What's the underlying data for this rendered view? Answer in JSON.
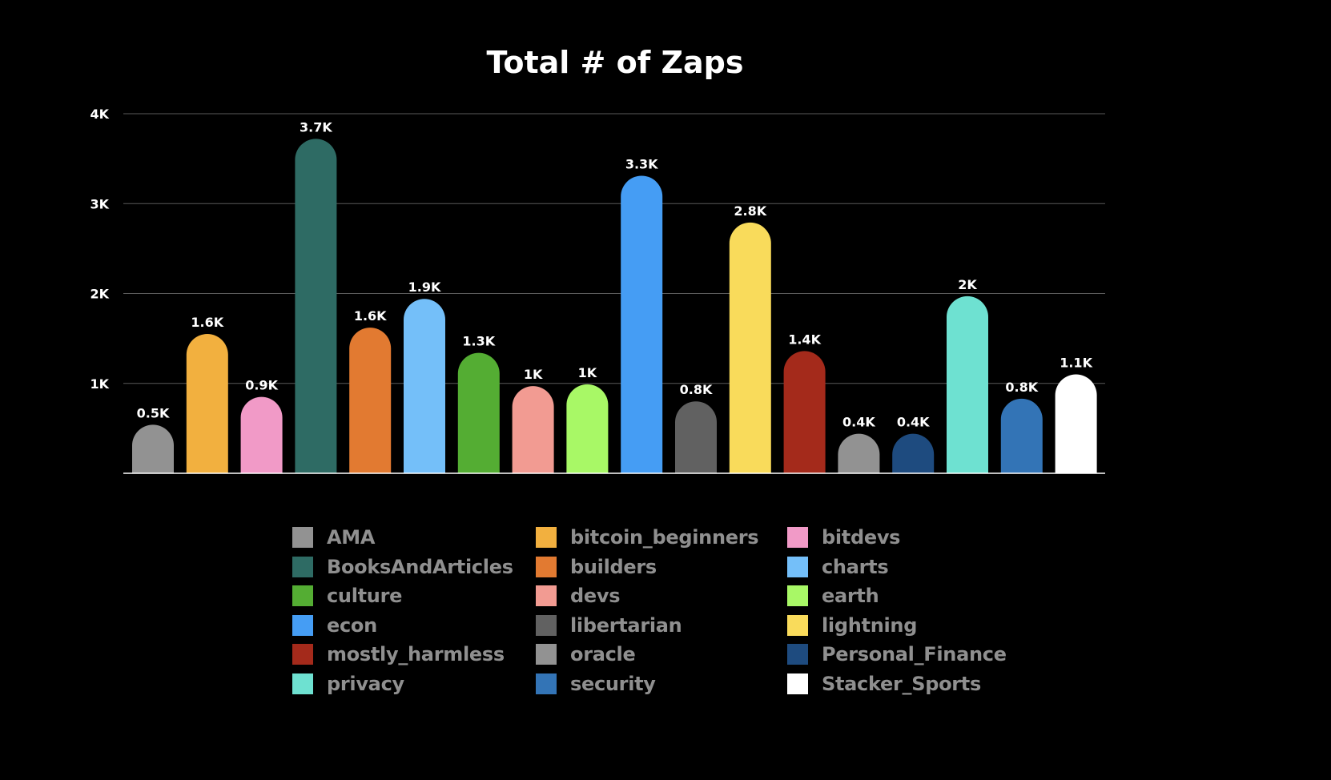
{
  "chart_data": {
    "type": "bar",
    "title": "Total # of Zaps",
    "xlabel": "",
    "ylabel": "",
    "ylim": [
      0,
      4000
    ],
    "yticks": [
      1000,
      2000,
      3000,
      4000
    ],
    "ytick_labels": [
      "1K",
      "2K",
      "3K",
      "4K"
    ],
    "grid": true,
    "legend_placement": "bottom",
    "categories": [
      "AMA",
      "bitcoin_beginners",
      "bitdevs",
      "BooksAndArticles",
      "builders",
      "charts",
      "culture",
      "devs",
      "earth",
      "econ",
      "libertarian",
      "lightning",
      "mostly_harmless",
      "oracle",
      "Personal_Finance",
      "privacy",
      "security",
      "Stacker_Sports"
    ],
    "values": [
      540,
      1550,
      850,
      3720,
      1620,
      1940,
      1340,
      970,
      990,
      3310,
      800,
      2790,
      1360,
      440,
      440,
      1970,
      830,
      1100
    ],
    "data_labels": [
      "0.5K",
      "1.6K",
      "0.9K",
      "3.7K",
      "1.6K",
      "1.9K",
      "1.3K",
      "1K",
      "1K",
      "3.3K",
      "0.8K",
      "2.8K",
      "1.4K",
      "0.4K",
      "0.4K",
      "2K",
      "0.8K",
      "1.1K"
    ],
    "colors": [
      "#929292",
      "#f2b03f",
      "#f19ac7",
      "#2e6b64",
      "#e27a31",
      "#74bff9",
      "#54ad33",
      "#f29b92",
      "#a8f866",
      "#459df4",
      "#616161",
      "#f9db5b",
      "#a42a1b",
      "#929292",
      "#1e4b7f",
      "#6ee1d1",
      "#3374b6",
      "#ffffff"
    ]
  }
}
